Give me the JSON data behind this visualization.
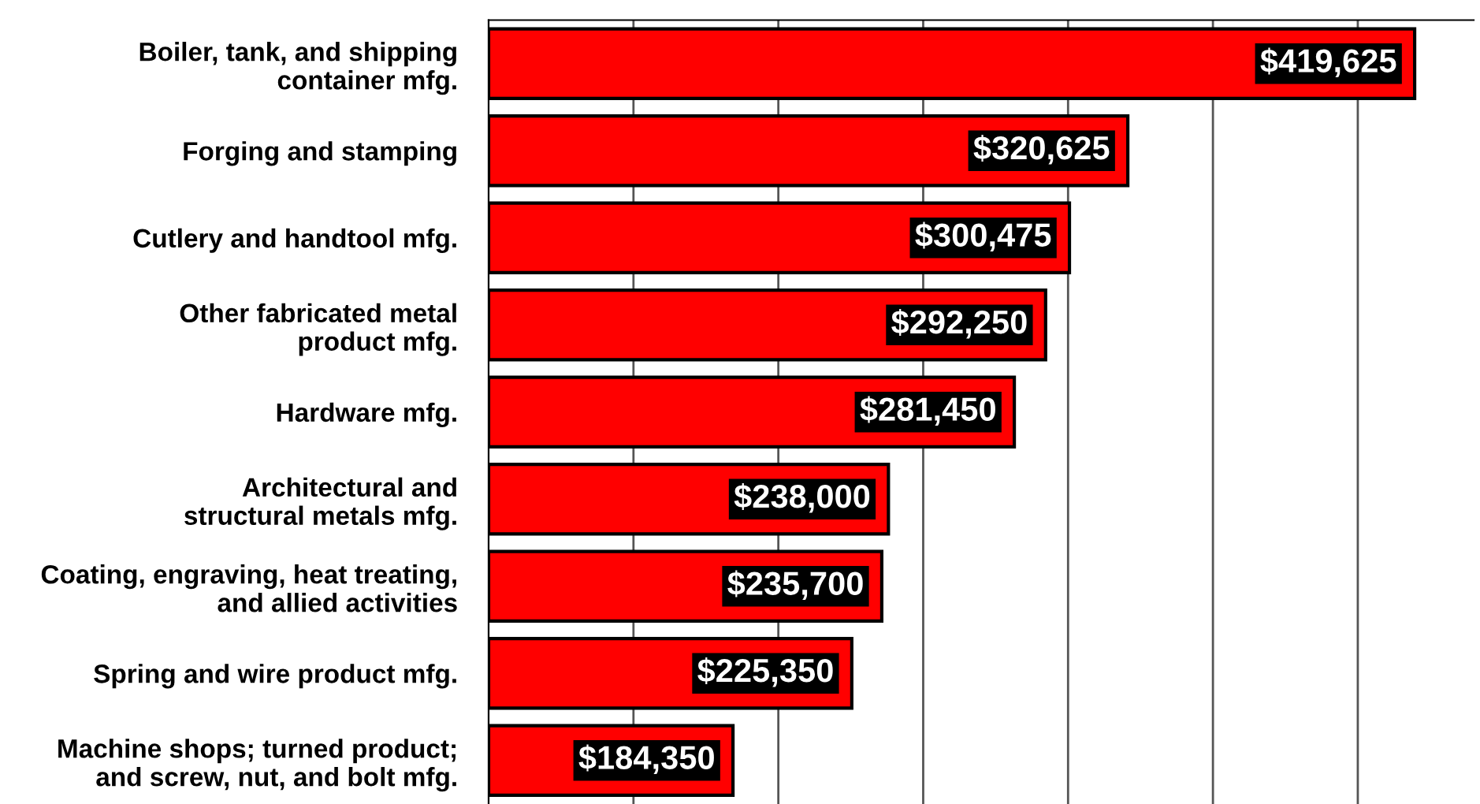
{
  "chart_data": {
    "type": "bar",
    "orientation": "horizontal",
    "categories": [
      "Boiler, tank, and shipping\ncontainer mfg.",
      "Forging and stamping",
      "Cutlery and handtool mfg.",
      "Other fabricated metal\nproduct mfg.",
      "Hardware mfg.",
      "Architectural and\nstructural metals mfg.",
      "Coating, engraving, heat treating,\nand allied activities",
      "Spring and wire product mfg.",
      "Machine shops; turned product;\nand screw, nut, and bolt mfg."
    ],
    "values": [
      419625,
      320625,
      300475,
      292250,
      281450,
      238000,
      235700,
      225350,
      184350
    ],
    "value_labels": [
      "$419,625",
      "$320,625",
      "$300,475",
      "$292,250",
      "$281,450",
      "$238,000",
      "$235,700",
      "$225,350",
      "$184,350"
    ],
    "color": "#ff0000",
    "xlim": [
      100000,
      440000
    ],
    "xticks": [
      {
        "value": 150000,
        "label": null
      },
      {
        "value": 200000,
        "label": null
      },
      {
        "value": 250000,
        "label": null
      },
      {
        "value": 300000,
        "label": null
      },
      {
        "value": 350000,
        "label": null
      },
      {
        "value": 400000,
        "label": null
      }
    ],
    "tick_labels": "y",
    "grid": "x",
    "legend": false
  }
}
